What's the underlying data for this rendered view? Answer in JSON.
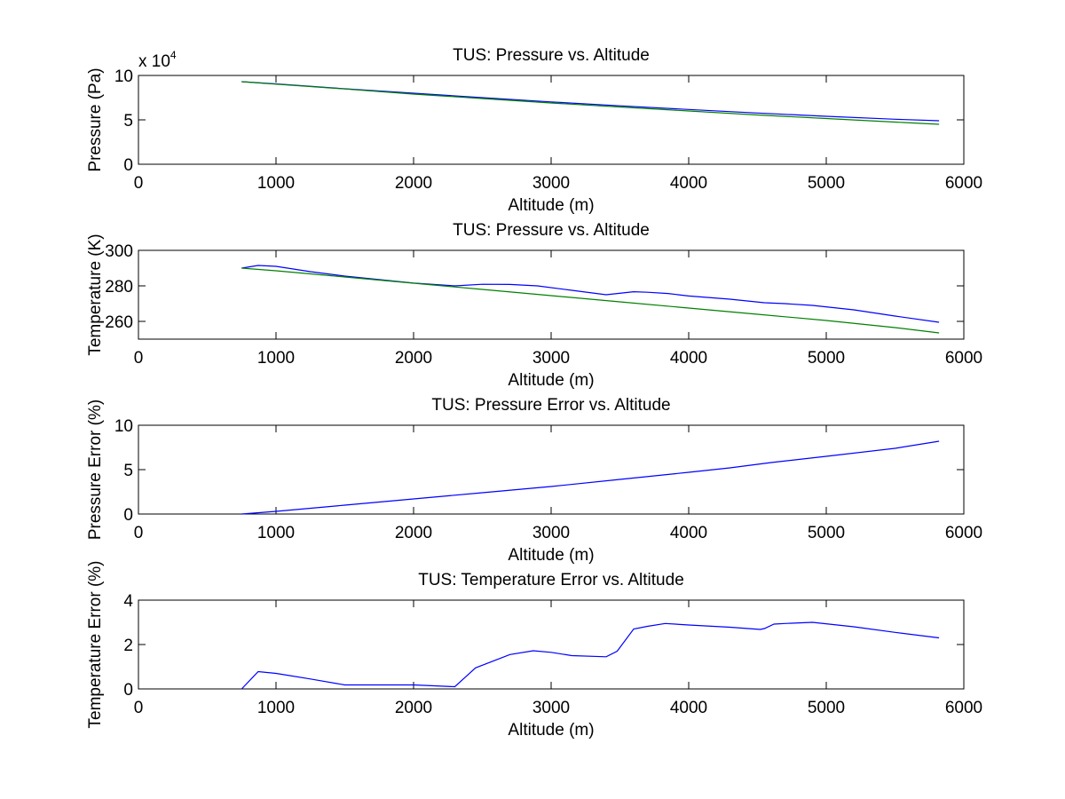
{
  "colors": {
    "background": "#ffffff",
    "axes": "#000000",
    "series_blue": "#0000ff",
    "series_green": "#008000"
  },
  "chart_data": [
    {
      "type": "line",
      "title": "TUS: Pressure vs. Altitude",
      "xlabel": "Altitude (m)",
      "ylabel": "Pressure (Pa)",
      "xlim": [
        0,
        6000
      ],
      "ylim": [
        0,
        10
      ],
      "y_exponent_label": "x 10",
      "y_exponent_power": "4",
      "xticks": [
        0,
        1000,
        2000,
        3000,
        4000,
        5000,
        6000
      ],
      "yticks": [
        0,
        5,
        10
      ],
      "grid": false,
      "series": [
        {
          "color": "#0000ff",
          "x": [
            750,
            1000,
            1500,
            2000,
            2500,
            3000,
            3500,
            4000,
            4500,
            5000,
            5500,
            5820
          ],
          "y": [
            9.3,
            9.05,
            8.5,
            8.0,
            7.5,
            7.02,
            6.58,
            6.17,
            5.77,
            5.4,
            5.07,
            4.9
          ]
        },
        {
          "color": "#008000",
          "x": [
            750,
            1000,
            1500,
            2000,
            2500,
            3000,
            3500,
            4000,
            4500,
            5000,
            5500,
            5820
          ],
          "y": [
            9.3,
            9.02,
            8.48,
            7.9,
            7.4,
            6.9,
            6.45,
            6.0,
            5.55,
            5.15,
            4.75,
            4.5
          ]
        }
      ]
    },
    {
      "type": "line",
      "title": "TUS: Pressure vs. Altitude",
      "xlabel": "Altitude (m)",
      "ylabel": "Temperature (K)",
      "xlim": [
        0,
        6000
      ],
      "ylim": [
        250,
        300
      ],
      "xticks": [
        0,
        1000,
        2000,
        3000,
        4000,
        5000,
        6000
      ],
      "yticks": [
        260,
        280,
        300
      ],
      "grid": false,
      "series": [
        {
          "color": "#0000ff",
          "x": [
            750,
            870,
            1000,
            1250,
            1500,
            2000,
            2300,
            2500,
            2700,
            2900,
            3150,
            3400,
            3600,
            3700,
            3850,
            4000,
            4300,
            4550,
            4700,
            4900,
            5200,
            5500,
            5820
          ],
          "y": [
            290.0,
            291.5,
            291.0,
            288.0,
            285.5,
            281.6,
            280.0,
            280.9,
            280.8,
            280.0,
            277.5,
            275.0,
            276.7,
            276.4,
            275.7,
            274.3,
            272.5,
            270.5,
            270.0,
            269.0,
            266.5,
            263.0,
            259.5
          ]
        },
        {
          "color": "#008000",
          "x": [
            750,
            1000,
            1500,
            2000,
            2500,
            3000,
            3500,
            4000,
            4500,
            5000,
            5500,
            5820
          ],
          "y": [
            290.0,
            288.5,
            285.0,
            281.5,
            278.0,
            274.5,
            271.0,
            267.5,
            264.0,
            260.5,
            256.5,
            253.5
          ]
        }
      ]
    },
    {
      "type": "line",
      "title": "TUS: Pressure Error vs. Altitude",
      "xlabel": "Altitude (m)",
      "ylabel": "Pressure Error (%)",
      "xlim": [
        0,
        6000
      ],
      "ylim": [
        0,
        10
      ],
      "xticks": [
        0,
        1000,
        2000,
        3000,
        4000,
        5000,
        6000
      ],
      "yticks": [
        0,
        5,
        10
      ],
      "grid": false,
      "series": [
        {
          "color": "#0000ff",
          "x": [
            750,
            1000,
            1500,
            2000,
            2500,
            3000,
            3500,
            4000,
            4300,
            4600,
            5000,
            5500,
            5820
          ],
          "y": [
            0.0,
            0.3,
            1.0,
            1.7,
            2.4,
            3.1,
            3.9,
            4.7,
            5.2,
            5.8,
            6.5,
            7.4,
            8.2
          ]
        }
      ]
    },
    {
      "type": "line",
      "title": "TUS: Temperature Error vs. Altitude",
      "xlabel": "Altitude (m)",
      "ylabel": "Temperature Error (%)",
      "xlim": [
        0,
        6000
      ],
      "ylim": [
        0,
        4
      ],
      "xticks": [
        0,
        1000,
        2000,
        3000,
        4000,
        5000,
        6000
      ],
      "yticks": [
        0,
        2,
        4
      ],
      "grid": false,
      "series": [
        {
          "color": "#0000ff",
          "x": [
            750,
            870,
            1000,
            1250,
            1500,
            2000,
            2300,
            2450,
            2700,
            2870,
            3000,
            3150,
            3400,
            3480,
            3600,
            3700,
            3830,
            4000,
            4300,
            4520,
            4550,
            4620,
            4700,
            4900,
            5200,
            5500,
            5820
          ],
          "y": [
            0.0,
            0.78,
            0.7,
            0.45,
            0.18,
            0.18,
            0.1,
            0.95,
            1.55,
            1.72,
            1.65,
            1.5,
            1.45,
            1.7,
            2.7,
            2.82,
            2.95,
            2.88,
            2.78,
            2.68,
            2.72,
            2.92,
            2.95,
            3.0,
            2.8,
            2.55,
            2.3
          ]
        }
      ]
    }
  ]
}
